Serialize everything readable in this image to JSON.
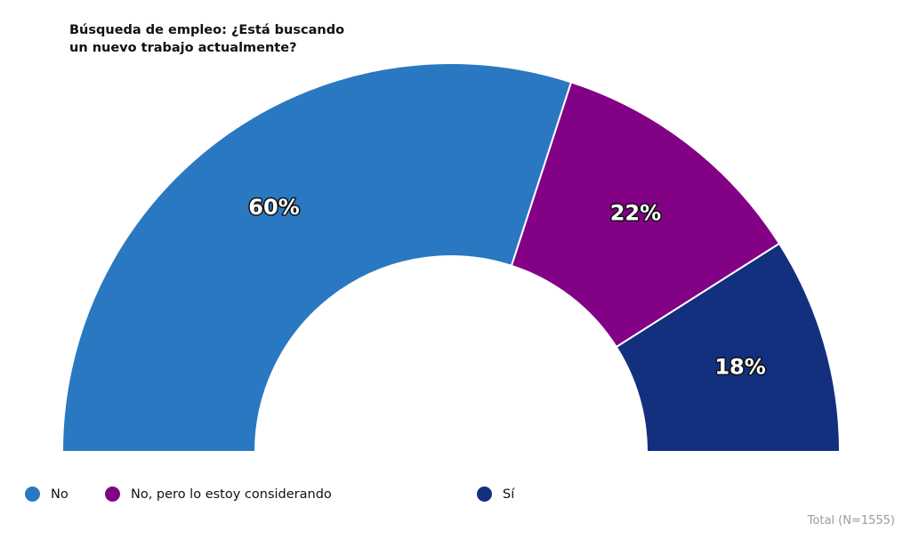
{
  "chart_data": {
    "type": "pie",
    "style": "semi-donut",
    "title_lines": [
      "Búsqueda de empleo: ¿Está buscando",
      "un nuevo trabajo actualmente?"
    ],
    "categories": [
      "No",
      "No, pero lo estoy considerando",
      "Sí"
    ],
    "values": [
      60,
      22,
      18
    ],
    "value_labels": [
      "60%",
      "22%",
      "18%"
    ],
    "colors": [
      "#2a78c1",
      "#830185",
      "#13307e"
    ],
    "legend_position": "bottom",
    "footnote": "Total (N=1555)"
  }
}
